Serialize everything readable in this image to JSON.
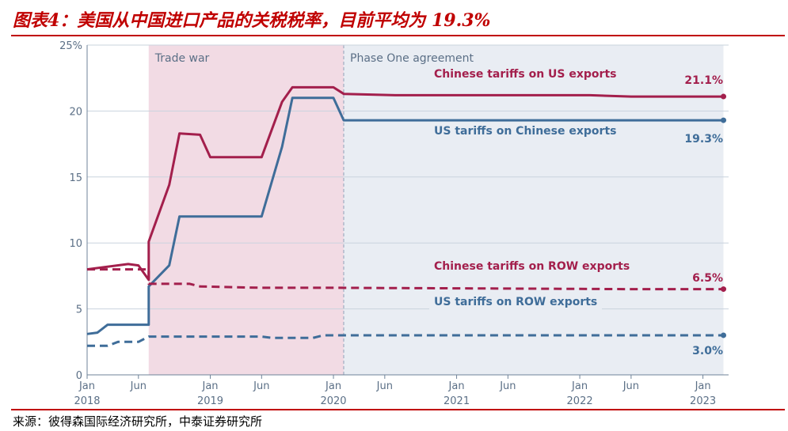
{
  "figure": {
    "title": "图表4：美国从中国进口产品的关税税率，目前平均为 19.3%",
    "source": "来源：彼得森国际经济研究所，中泰证券研究所"
  },
  "colors": {
    "title": "#c00000",
    "chinese": "#a31f4c",
    "us": "#3f6d99",
    "trade_war_band": "#f2dbe4",
    "phase_one_band": "#e9edf3",
    "grid": "#c9d3de",
    "axis_text": "#5b6f86"
  },
  "chart_data": {
    "type": "line",
    "x_unit": "date",
    "ylim": [
      0,
      25
    ],
    "y_ticks": [
      0,
      5,
      10,
      15,
      20,
      25
    ],
    "y_tick_labels": [
      "0",
      "5",
      "10",
      "15",
      "20",
      "25%"
    ],
    "grid": "horizontal",
    "x_ticks": [
      {
        "date": "2018-01",
        "label": "Jan",
        "year": "2018"
      },
      {
        "date": "2018-06",
        "label": "Jun",
        "year": ""
      },
      {
        "date": "2019-01",
        "label": "Jan",
        "year": "2019"
      },
      {
        "date": "2019-06",
        "label": "Jun",
        "year": ""
      },
      {
        "date": "2020-01",
        "label": "Jan",
        "year": "2020"
      },
      {
        "date": "2020-06",
        "label": "Jun",
        "year": ""
      },
      {
        "date": "2021-01",
        "label": "Jan",
        "year": "2021"
      },
      {
        "date": "2021-06",
        "label": "Jun",
        "year": ""
      },
      {
        "date": "2022-01",
        "label": "Jan",
        "year": "2022"
      },
      {
        "date": "2022-06",
        "label": "Jun",
        "year": ""
      },
      {
        "date": "2023-01",
        "label": "Jan",
        "year": "2023"
      }
    ],
    "regions": [
      {
        "label": "Trade war",
        "from": "2018-07",
        "to": "2020-02"
      },
      {
        "label": "Phase One agreement",
        "from": "2020-02",
        "to": "2023-03"
      }
    ],
    "series": [
      {
        "name": "Chinese tariffs on US exports",
        "style": "solid",
        "color": "chinese",
        "end_label": "21.1%",
        "points": [
          [
            "2018-01",
            8.0
          ],
          [
            "2018-05",
            8.4
          ],
          [
            "2018-06",
            8.3
          ],
          [
            "2018-07",
            7.2
          ],
          [
            "2018-07",
            10.1
          ],
          [
            "2018-09",
            14.4
          ],
          [
            "2018-10",
            18.3
          ],
          [
            "2018-12",
            18.2
          ],
          [
            "2019-01",
            16.5
          ],
          [
            "2019-06",
            16.5
          ],
          [
            "2019-08",
            20.7
          ],
          [
            "2019-09",
            21.8
          ],
          [
            "2020-01",
            21.8
          ],
          [
            "2020-02",
            21.3
          ],
          [
            "2020-07",
            21.2
          ],
          [
            "2022-02",
            21.2
          ],
          [
            "2022-06",
            21.1
          ],
          [
            "2023-03",
            21.1
          ]
        ]
      },
      {
        "name": "US tariffs on Chinese exports",
        "style": "solid",
        "color": "us",
        "end_label": "19.3%",
        "points": [
          [
            "2018-01",
            3.1
          ],
          [
            "2018-02",
            3.2
          ],
          [
            "2018-03",
            3.8
          ],
          [
            "2018-07",
            3.8
          ],
          [
            "2018-07",
            6.7
          ],
          [
            "2018-09",
            8.3
          ],
          [
            "2018-10",
            12.0
          ],
          [
            "2019-06",
            12.0
          ],
          [
            "2019-08",
            17.3
          ],
          [
            "2019-09",
            21.0
          ],
          [
            "2020-01",
            21.0
          ],
          [
            "2020-02",
            19.3
          ],
          [
            "2023-03",
            19.3
          ]
        ]
      },
      {
        "name": "Chinese tariffs on ROW exports",
        "style": "dashed",
        "color": "chinese",
        "end_label": "6.5%",
        "points": [
          [
            "2018-01",
            8.0
          ],
          [
            "2018-07",
            8.0
          ],
          [
            "2018-07",
            6.9
          ],
          [
            "2018-11",
            6.9
          ],
          [
            "2018-12",
            6.7
          ],
          [
            "2019-06",
            6.6
          ],
          [
            "2020-01",
            6.6
          ],
          [
            "2022-06",
            6.5
          ],
          [
            "2023-03",
            6.5
          ]
        ]
      },
      {
        "name": "US tariffs on ROW exports",
        "style": "dashed",
        "color": "us",
        "end_label": "3.0%",
        "points": [
          [
            "2018-01",
            2.2
          ],
          [
            "2018-03",
            2.2
          ],
          [
            "2018-04",
            2.5
          ],
          [
            "2018-06",
            2.5
          ],
          [
            "2018-07",
            2.9
          ],
          [
            "2019-06",
            2.9
          ],
          [
            "2019-07",
            2.8
          ],
          [
            "2019-11",
            2.8
          ],
          [
            "2019-12",
            3.0
          ],
          [
            "2023-03",
            3.0
          ]
        ]
      }
    ]
  }
}
